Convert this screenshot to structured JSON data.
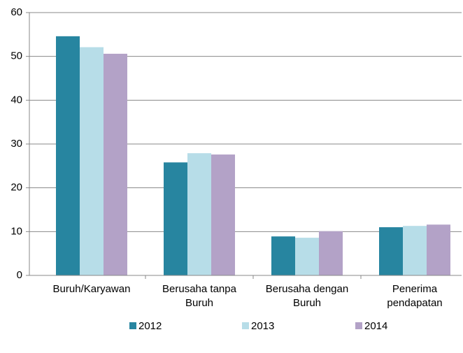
{
  "chart_data": {
    "type": "bar",
    "categories": [
      "Buruh/Karyawan",
      "Berusaha tanpa Buruh",
      "Berusaha dengan Buruh",
      "Penerima pendapatan"
    ],
    "series": [
      {
        "name": "2012",
        "color": "#2785a0",
        "values": [
          54.6,
          25.8,
          8.9,
          11.0
        ]
      },
      {
        "name": "2013",
        "color": "#b7dde8",
        "values": [
          52.1,
          27.9,
          8.6,
          11.3
        ]
      },
      {
        "name": "2014",
        "color": "#b3a2c7",
        "values": [
          50.6,
          27.6,
          10.1,
          11.6
        ]
      }
    ],
    "ylim": [
      0,
      60
    ],
    "yticks": [
      0,
      10,
      20,
      30,
      40,
      50,
      60
    ],
    "grid": true,
    "legend": "bottom"
  }
}
